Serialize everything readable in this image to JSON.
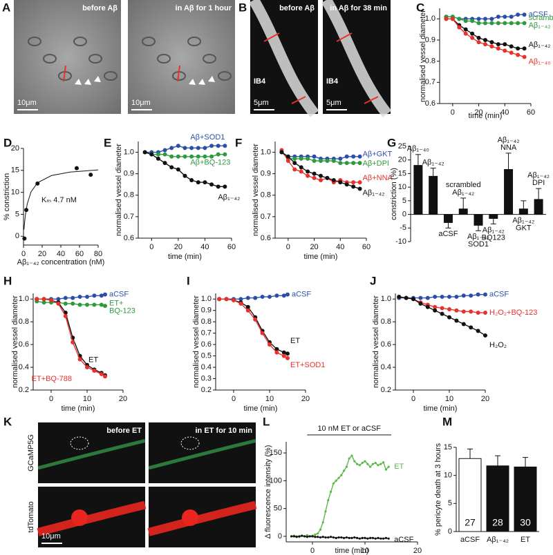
{
  "images": [
    {
      "label": "A",
      "frames": [
        {
          "caption": "before Aβ",
          "scale": "10μm"
        },
        {
          "caption": "in Aβ for 1 hour",
          "scale": "10μm"
        }
      ]
    },
    {
      "label": "B",
      "frames": [
        {
          "caption": "before Aβ",
          "stain": "IB4",
          "scale": "5μm"
        },
        {
          "caption": "in Aβ for 38 min",
          "stain": "IB4",
          "scale": "5μm"
        }
      ]
    },
    {
      "label": "K",
      "rows": [
        "GCaMP5G",
        "tdTomato"
      ],
      "frames": [
        {
          "caption": "before ET",
          "scale": "10μm"
        },
        {
          "caption": "in ET for 10 min"
        }
      ]
    }
  ],
  "chart_data": [
    {
      "type": "line",
      "label": "C",
      "xlabel": "time (min)",
      "ylabel": "normalised vessel diameter",
      "xlim": [
        -10,
        60
      ],
      "xticks": [
        0,
        20,
        40,
        60
      ],
      "ylim": [
        0.6,
        1.05
      ],
      "yticks": [
        0.6,
        0.7,
        0.8,
        0.9,
        {
          "value": 1,
          "label": "1.0"
        }
      ],
      "x": [
        -5,
        0,
        5,
        10,
        15,
        20,
        25,
        30,
        35,
        40,
        45,
        50,
        55
      ],
      "series": [
        {
          "name": "aCSF",
          "color": "#2b4fa8",
          "values": [
            1.01,
            1.01,
            1,
            1,
            1,
            1,
            1,
            1,
            1.01,
            1.01,
            1.01,
            1.02,
            1.02
          ]
        },
        {
          "name": [
            "scrambled",
            "Aβ₁₋₄₂"
          ],
          "color": "#2e9a3e",
          "values": [
            1.01,
            1.01,
            1,
            0.99,
            0.99,
            0.98,
            0.98,
            0.98,
            0.98,
            0.98,
            0.98,
            0.98,
            0.98
          ]
        },
        {
          "name": "Aβ₁₋₄₂",
          "color": "#111111",
          "values": [
            1,
            1,
            0.97,
            0.95,
            0.93,
            0.91,
            0.9,
            0.89,
            0.88,
            0.88,
            0.87,
            0.86,
            0.86
          ]
        },
        {
          "name": "Aβ₁₋₄₀",
          "color": "#e8312a",
          "values": [
            1,
            1,
            0.96,
            0.93,
            0.91,
            0.89,
            0.88,
            0.87,
            0.86,
            0.85,
            0.84,
            0.83,
            0.82
          ]
        }
      ]
    },
    {
      "type": "scatter",
      "label": "D",
      "xlabel": "Aβ₁₋₄₂ concentration (nM)",
      "ylabel": "% constriction",
      "xlim": [
        0,
        80
      ],
      "xticks": [
        0,
        20,
        40,
        60,
        80
      ],
      "ylim": [
        -2,
        20
      ],
      "yticks": [
        0,
        5,
        10,
        15,
        20
      ],
      "x": [
        1,
        3,
        15,
        57,
        72
      ],
      "values": [
        -0.5,
        6,
        12,
        15.5,
        14
      ],
      "color": "#111111",
      "fit": {
        "x": [
          0.5,
          1,
          2,
          4,
          8,
          15,
          30,
          50,
          80
        ],
        "values": [
          1.53,
          2.8,
          4.78,
          7.36,
          10.08,
          12.18,
          13.83,
          14.62,
          15.11
        ]
      },
      "annotation": "Kₘ  4.7 nM"
    },
    {
      "type": "line",
      "label": "E",
      "xlabel": "time (min)",
      "ylabel": "normalised vessel diameter",
      "xlim": [
        -10,
        60
      ],
      "xticks": [
        0,
        20,
        40,
        60
      ],
      "ylim": [
        0.6,
        1.05
      ],
      "yticks": [
        0.6,
        0.7,
        0.8,
        0.9,
        {
          "value": 1,
          "label": "1.0"
        }
      ],
      "x": [
        -5,
        0,
        5,
        10,
        15,
        20,
        25,
        30,
        35,
        40,
        45,
        50,
        55
      ],
      "series": [
        {
          "name": "Aβ+SOD1",
          "color": "#2b4fa8",
          "values": [
            1,
            1,
            1,
            1.01,
            1.02,
            1.03,
            1.02,
            1.02,
            1.02,
            1.02,
            1.03,
            1.03,
            1.03
          ]
        },
        {
          "name": "Aβ+BQ-123",
          "color": "#2e9a3e",
          "values": [
            1,
            0.99,
            0.99,
            0.99,
            0.98,
            0.98,
            0.98,
            0.98,
            0.98,
            0.98,
            0.98,
            0.99,
            0.99
          ]
        },
        {
          "name": "Aβ₁₋₄₂",
          "color": "#111111",
          "values": [
            1,
            0.99,
            0.97,
            0.95,
            0.93,
            0.92,
            0.89,
            0.87,
            0.86,
            0.86,
            0.85,
            0.84,
            0.84
          ]
        }
      ]
    },
    {
      "type": "line",
      "label": "F",
      "xlabel": "time (min)",
      "ylabel": "normalised vessel diameter",
      "xlim": [
        -10,
        60
      ],
      "xticks": [
        0,
        20,
        40,
        60
      ],
      "ylim": [
        0.6,
        1.05
      ],
      "yticks": [
        0.6,
        0.7,
        0.8,
        0.9,
        {
          "value": 1,
          "label": "1.0"
        }
      ],
      "x": [
        -5,
        0,
        5,
        10,
        15,
        20,
        25,
        30,
        35,
        40,
        45,
        50,
        55
      ],
      "series": [
        {
          "name": "Aβ+GKT",
          "color": "#2b4fa8",
          "values": [
            1,
            0.98,
            0.98,
            0.98,
            0.98,
            0.98,
            0.97,
            0.97,
            0.97,
            0.97,
            0.98,
            0.98,
            0.98
          ]
        },
        {
          "name": "Aβ+DPI",
          "color": "#2e9a3e",
          "values": [
            1,
            0.97,
            0.97,
            0.97,
            0.97,
            0.96,
            0.96,
            0.96,
            0.96,
            0.95,
            0.95,
            0.95,
            0.95
          ]
        },
        {
          "name": "Aβ+NNA",
          "color": "#e8312a",
          "values": [
            1.01,
            0.96,
            0.92,
            0.91,
            0.89,
            0.88,
            0.87,
            0.88,
            0.86,
            0.87,
            0.86,
            0.86,
            0.86
          ]
        },
        {
          "name": "Aβ₁₋₄₂",
          "color": "#111111",
          "values": [
            1,
            0.98,
            0.95,
            0.93,
            0.91,
            0.9,
            0.89,
            0.88,
            0.87,
            0.86,
            0.85,
            0.84,
            0.83
          ]
        }
      ]
    },
    {
      "type": "bar",
      "label": "G",
      "ylabel": "constriction (%)",
      "ylim": [
        -10,
        25
      ],
      "yticks": [
        -10,
        -5,
        0,
        5,
        10,
        15,
        20,
        25
      ],
      "color": "#111111",
      "categories": [
        "Aβ₁₋₄₀",
        "Aβ₁₋₄₂",
        "aCSF",
        [
          "scrambled",
          "Aβ₁₋₄₂"
        ],
        [
          "Aβ₁₋₄₂",
          "SOD1"
        ],
        [
          "Aβ₁₋₄₂",
          "BQ123"
        ],
        [
          "Aβ₁₋₄₂",
          "NNA"
        ],
        [
          "Aβ₁₋₄₂",
          "GKT"
        ],
        [
          "Aβ₁₋₄₂",
          "DPI"
        ]
      ],
      "values": [
        18,
        14,
        -3,
        2,
        -4,
        -1.5,
        16.5,
        2,
        5.5
      ],
      "errors": [
        4,
        3,
        2,
        4,
        2,
        2,
        6,
        3,
        4
      ]
    },
    {
      "type": "line",
      "label": "H",
      "xlabel": "time (min)",
      "ylabel": "normalised vessel diameter",
      "xlim": [
        -5,
        20
      ],
      "xticks": [
        0,
        10,
        20
      ],
      "ylim": [
        0.2,
        1.05
      ],
      "yticks": [
        0.2,
        0.4,
        0.6,
        0.8,
        {
          "value": 1,
          "label": "1.0"
        }
      ],
      "x": [
        -4,
        -2,
        0,
        2,
        4,
        6,
        8,
        10,
        12,
        14,
        15
      ],
      "series": [
        {
          "name": "aCSF",
          "color": "#2b4fa8",
          "values": [
            1,
            1,
            1,
            1,
            1.01,
            1.01,
            1.02,
            1.02,
            1.03,
            1.03,
            1.04
          ]
        },
        {
          "name": [
            "ET+",
            "BQ-123"
          ],
          "color": "#2e9a3e",
          "values": [
            0.98,
            0.97,
            0.97,
            0.97,
            0.96,
            0.96,
            0.95,
            0.95,
            0.95,
            0.95,
            0.94
          ]
        },
        {
          "name": "ET",
          "color": "#111111",
          "values": [
            1,
            1,
            0.99,
            0.97,
            0.88,
            0.66,
            0.5,
            0.42,
            0.38,
            0.35,
            0.33
          ]
        },
        {
          "name": "ET+BQ-788",
          "color": "#e8312a",
          "values": [
            1,
            1,
            0.99,
            0.96,
            0.85,
            0.62,
            0.47,
            0.4,
            0.37,
            0.34,
            0.32
          ]
        }
      ]
    },
    {
      "type": "line",
      "label": "I",
      "xlabel": "time (min)",
      "ylabel": "normalised vessel diameter",
      "xlim": [
        -5,
        20
      ],
      "xticks": [
        0,
        10,
        20
      ],
      "ylim": [
        0.2,
        1.05
      ],
      "yticks": [
        0.2,
        0.3,
        0.4,
        0.5,
        0.6,
        0.7,
        0.8,
        0.9,
        {
          "value": 1,
          "label": "1.0"
        }
      ],
      "x": [
        -4,
        -2,
        0,
        2,
        4,
        6,
        8,
        10,
        12,
        14,
        15
      ],
      "series": [
        {
          "name": "aCSF",
          "color": "#2b4fa8",
          "values": [
            1,
            1,
            1,
            1,
            1.01,
            1.01,
            1.02,
            1.02,
            1.03,
            1.03,
            1.04
          ]
        },
        {
          "name": "ET",
          "color": "#111111",
          "values": [
            1,
            1,
            0.99,
            0.97,
            0.93,
            0.84,
            0.72,
            0.62,
            0.56,
            0.53,
            0.52
          ]
        },
        {
          "name": "ET+SOD1",
          "color": "#e8312a",
          "values": [
            1,
            1,
            0.99,
            0.96,
            0.9,
            0.82,
            0.7,
            0.6,
            0.53,
            0.5,
            0.48
          ]
        }
      ]
    },
    {
      "type": "line",
      "label": "J",
      "xlabel": "time (min)",
      "ylabel": "normalised vessel diameter",
      "xlim": [
        -5,
        20
      ],
      "xticks": [
        0,
        10,
        20
      ],
      "ylim": [
        0.2,
        1.05
      ],
      "yticks": [
        0.2,
        0.4,
        0.6,
        0.8,
        {
          "value": 1,
          "label": "1.0"
        }
      ],
      "x": [
        -4,
        -2,
        0,
        2,
        4,
        6,
        8,
        10,
        12,
        14,
        16,
        18,
        20
      ],
      "series": [
        {
          "name": "aCSF",
          "color": "#2b4fa8",
          "values": [
            1.01,
            1.01,
            1.01,
            1.01,
            1.01,
            1.02,
            1.02,
            1.02,
            1.02,
            1.03,
            1.03,
            1.04,
            1.04
          ]
        },
        {
          "name": "H₂O₂+BQ-123",
          "color": "#e8312a",
          "values": [
            1.02,
            1.01,
            1,
            0.97,
            0.95,
            0.93,
            0.92,
            0.91,
            0.9,
            0.89,
            0.89,
            0.88,
            0.88
          ]
        },
        {
          "name": "H₂O₂",
          "color": "#111111",
          "values": [
            1.02,
            1.01,
            1,
            0.96,
            0.93,
            0.9,
            0.87,
            0.84,
            0.81,
            0.78,
            0.75,
            0.72,
            0.68
          ]
        }
      ]
    },
    {
      "type": "line",
      "label": "L",
      "xlabel": "time (min)",
      "ylabel": "Δ fluorescence intensity (%)",
      "xlim": [
        -5,
        20
      ],
      "xticks": [
        0,
        10,
        20
      ],
      "ylim": [
        -10,
        170
      ],
      "yticks": [
        0,
        50,
        100,
        150
      ],
      "annotation": {
        "text": "10 nM ET or aCSF",
        "span": [
          -1,
          15
        ]
      },
      "x": [
        -4,
        -3.5,
        -3,
        -2.5,
        -2,
        -1.5,
        -1,
        -0.5,
        0,
        0.5,
        1,
        1.5,
        2,
        2.5,
        3,
        3.5,
        4,
        4.5,
        5,
        5.5,
        6,
        6.5,
        7,
        7.5,
        8,
        8.5,
        9,
        9.5,
        10,
        10.5,
        11,
        11.5,
        12,
        12.5,
        13,
        13.5,
        14,
        14.5
      ],
      "series": [
        {
          "name": "ET",
          "color": "#5cb848",
          "values": [
            0,
            1,
            0,
            -1,
            1,
            0,
            2,
            0,
            1,
            3,
            5,
            12,
            25,
            45,
            65,
            80,
            95,
            100,
            105,
            110,
            118,
            125,
            140,
            145,
            135,
            130,
            128,
            132,
            135,
            130,
            125,
            130,
            132,
            128,
            130,
            133,
            120,
            125
          ]
        },
        {
          "name": "aCSF",
          "color": "#111111",
          "values": [
            0,
            0,
            -1,
            0,
            1,
            0,
            -1,
            0,
            0,
            -1,
            -1,
            -2,
            -1,
            -2,
            -2,
            -1,
            -2,
            -3,
            -2,
            -2,
            -3,
            -2,
            -3,
            -3,
            -2,
            -3,
            -4,
            -3,
            -3,
            -4,
            -3,
            -3,
            -4,
            -3,
            -4,
            -4,
            -3,
            -4
          ]
        }
      ]
    },
    {
      "type": "bar",
      "label": "M",
      "ylabel": "% pericyte death at 3 hours",
      "ylim": [
        0,
        15
      ],
      "yticks": [
        0,
        5,
        10,
        15
      ],
      "categories": [
        "aCSF",
        "Aβ₁₋₄₂",
        "ET"
      ],
      "values": [
        13,
        11.7,
        11.5
      ],
      "errors": [
        1.7,
        1.8,
        1.7
      ],
      "colors": [
        "#ffffff",
        "#111111",
        "#111111"
      ],
      "n": [
        27,
        28,
        30
      ]
    }
  ]
}
